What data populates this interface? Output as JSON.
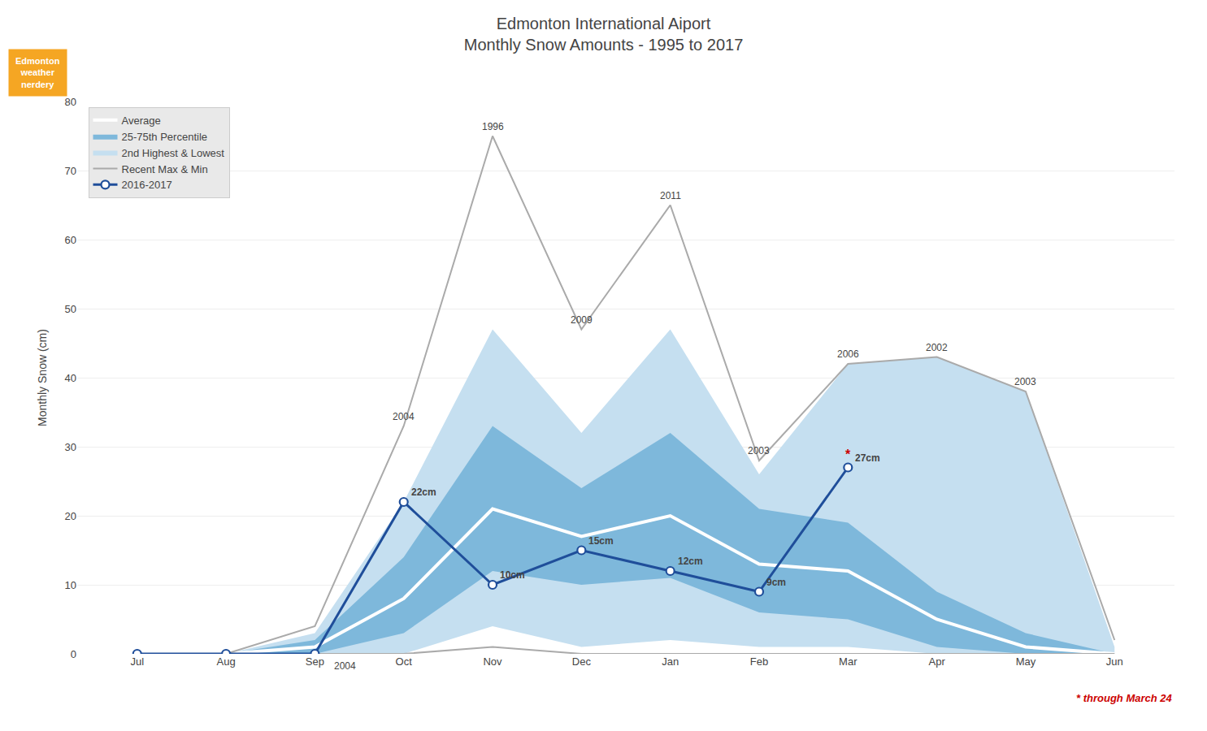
{
  "chart_data": {
    "type": "line",
    "title": "Edmonton International Aiport",
    "subtitle": "Monthly Snow Amounts - 1995 to 2017",
    "y_label": "Monthly Snow (cm)",
    "categories": [
      "Jul",
      "Aug",
      "Sep",
      "Oct",
      "Nov",
      "Dec",
      "Jan",
      "Feb",
      "Mar",
      "Apr",
      "May",
      "Jun"
    ],
    "ylim": [
      0,
      80
    ],
    "yticks": [
      0,
      10,
      20,
      30,
      40,
      50,
      60,
      70,
      80
    ],
    "grid": true,
    "legend": "upper left",
    "series": [
      {
        "name": "Average",
        "type": "line",
        "color": "#ffffff",
        "values": [
          0,
          0,
          1,
          8,
          21,
          17,
          20,
          13,
          12,
          5,
          1,
          0
        ]
      },
      {
        "name": "25-75th Percentile",
        "type": "band",
        "color": "#7eb8db",
        "lower": [
          0,
          0,
          0,
          3,
          12,
          10,
          11,
          6,
          5,
          1,
          0,
          0
        ],
        "upper": [
          0,
          0,
          2,
          14,
          33,
          24,
          32,
          21,
          19,
          9,
          3,
          0
        ]
      },
      {
        "name": "2nd Highest & Lowest",
        "type": "band",
        "color": "#c5dff0",
        "lower": [
          0,
          0,
          0,
          0,
          4,
          1,
          2,
          1,
          1,
          0,
          0,
          0
        ],
        "upper": [
          0,
          0,
          3,
          22,
          47,
          32,
          47,
          26,
          42,
          43,
          38,
          1
        ]
      },
      {
        "name": "Recent Max & Min",
        "type": "range",
        "color": "#aaaaaa",
        "lower": [
          0,
          0,
          0,
          0,
          1,
          0,
          0,
          0,
          0,
          0,
          0,
          0
        ],
        "upper": [
          0,
          0,
          4,
          33,
          75,
          47,
          65,
          28,
          42,
          43,
          38,
          2
        ]
      },
      {
        "name": "2016-2017",
        "type": "line",
        "color": "#1f4e9a",
        "marker": "circle",
        "values": [
          0,
          0,
          0,
          22,
          10,
          15,
          12,
          9,
          27,
          null,
          null,
          null
        ],
        "data_labels": true,
        "value_labels": [
          null,
          null,
          null,
          "22cm",
          "10cm",
          "15cm",
          "12cm",
          "9cm",
          "27cm",
          null,
          null,
          null
        ]
      }
    ],
    "annotations": [
      {
        "text": "1996",
        "x": "Nov",
        "y": 75
      },
      {
        "text": "2009",
        "x": "Dec",
        "y": 47
      },
      {
        "text": "2011",
        "x": "Jan",
        "y": 65
      },
      {
        "text": "2003",
        "x": "Feb",
        "y": 28
      },
      {
        "text": "2006",
        "x": "Mar",
        "y": 42
      },
      {
        "text": "2002",
        "x": "Apr",
        "y": 43
      },
      {
        "text": "2003",
        "x": "May",
        "y": 38
      },
      {
        "text": "2004",
        "x": "Oct",
        "y": 33
      },
      {
        "text": "2004",
        "x": "Sep",
        "y": 0,
        "position": "below"
      },
      {
        "text": "*",
        "x": "Mar",
        "y": 27,
        "color": "#cc0000"
      }
    ],
    "footnote": {
      "text": "* through March 24",
      "color": "#cc0000"
    },
    "badge": {
      "lines": [
        "Edmonton",
        "weather",
        "nerdery"
      ],
      "color": "#f5a623"
    }
  }
}
